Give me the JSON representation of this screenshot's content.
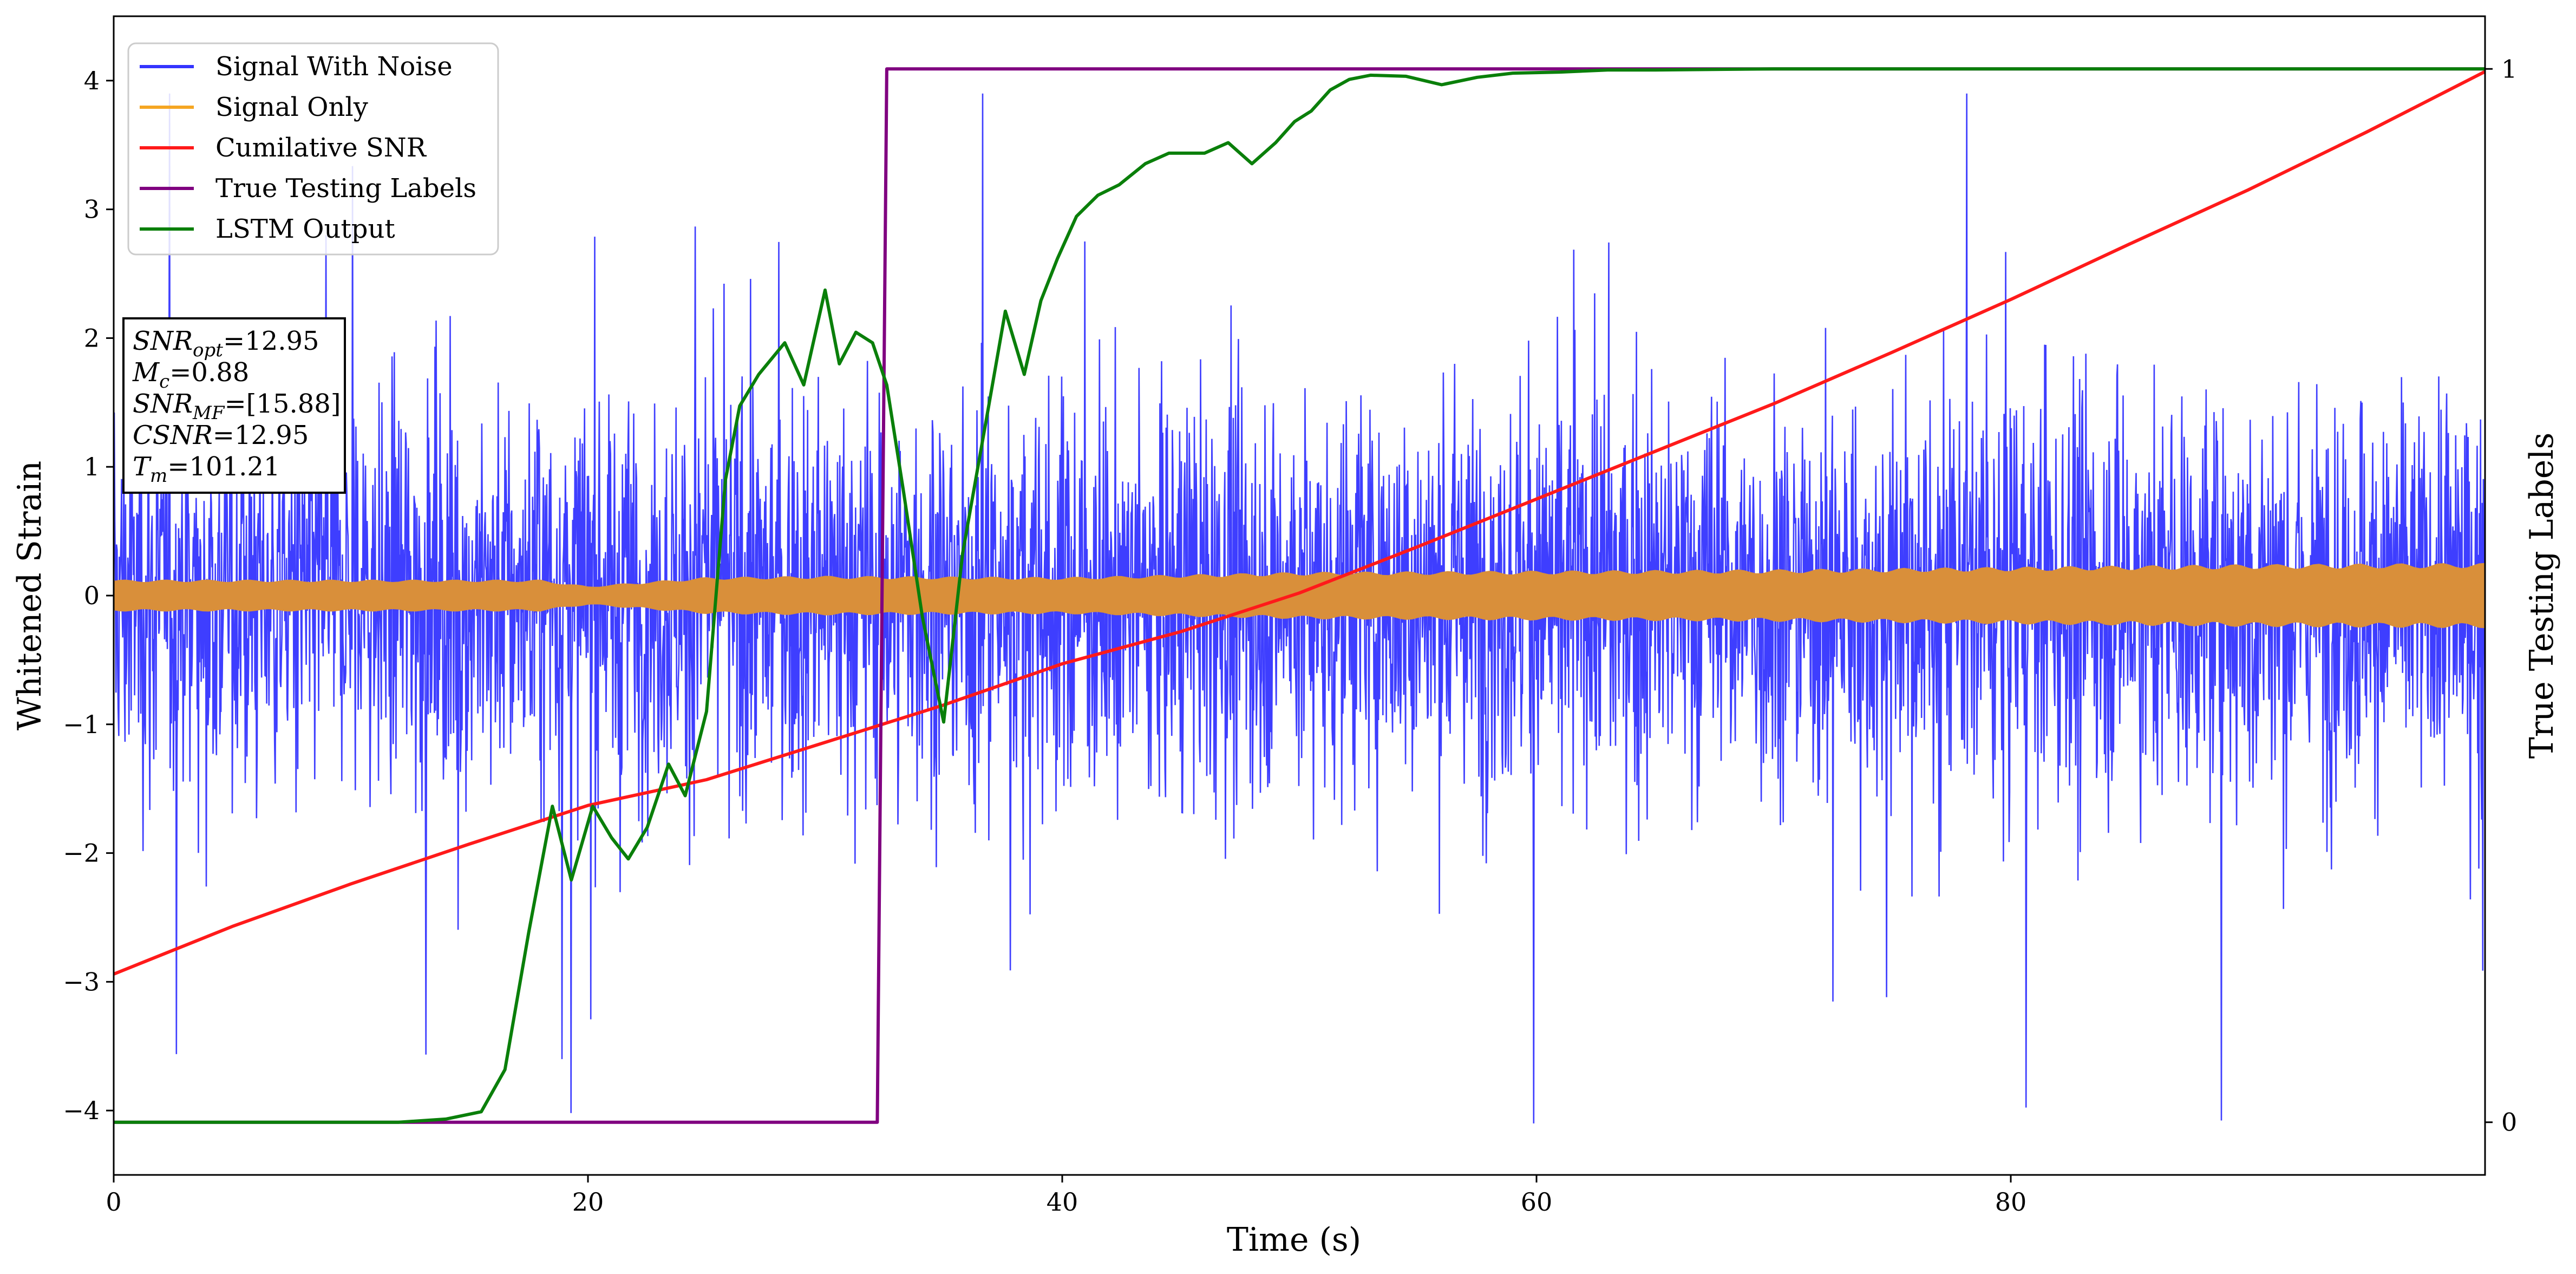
{
  "chart_data": {
    "type": "line",
    "xlabel": "Time (s)",
    "ylabel": "Whitened Strain",
    "y2label": "True Testing Labels",
    "xlim": [
      0,
      100
    ],
    "ylim": [
      -4.5,
      4.5
    ],
    "y2lim": [
      -0.05,
      1.05
    ],
    "xticks": [
      "0",
      "20",
      "40",
      "60",
      "80"
    ],
    "yticks": [
      "−4",
      "−3",
      "−2",
      "−1",
      "0",
      "1",
      "2",
      "3",
      "4"
    ],
    "y2ticks": [
      "0",
      "1"
    ],
    "grid": false,
    "legend_position": "upper-left",
    "legend": [
      {
        "label": "Signal With Noise",
        "color": "#3434ff"
      },
      {
        "label": "Signal Only",
        "color": "#f5a623"
      },
      {
        "label": "Cumilative SNR",
        "color": "#ff1a1a"
      },
      {
        "label": "True Testing Labels",
        "color": "#800080"
      },
      {
        "label": "LSTM Output",
        "color": "#0a7f0a"
      }
    ],
    "annotation": [
      {
        "base": "SNR",
        "sub": "opt",
        "value": "=12.95"
      },
      {
        "base": "M",
        "sub": "c",
        "value": "=0.88"
      },
      {
        "base": "SNR",
        "sub": "MF",
        "value": "=[15.88]"
      },
      {
        "base": "CSNR",
        "sub": "",
        "value": "=12.95"
      },
      {
        "base": "T",
        "sub": "m",
        "value": "=101.21"
      }
    ],
    "series": [
      {
        "name": "Signal With Noise",
        "axis": "left",
        "color": "#3434ff",
        "description_envelope": {
          "x_start": 0,
          "x_end": 100,
          "typical_amplitude": 2.3,
          "max": 3.9,
          "min": -4.1
        }
      },
      {
        "name": "Signal Only",
        "axis": "left",
        "color": "#d98f3a",
        "envelope": {
          "x": [
            0,
            10,
            18,
            20,
            25,
            30,
            40,
            50,
            60,
            70,
            80,
            90,
            100
          ],
          "amp": [
            0.12,
            0.12,
            0.12,
            0.07,
            0.14,
            0.15,
            0.14,
            0.18,
            0.19,
            0.2,
            0.22,
            0.24,
            0.25
          ]
        }
      },
      {
        "name": "Cumilative SNR",
        "axis": "left",
        "color": "#ff1a1a",
        "x": [
          0,
          5,
          10,
          15,
          20,
          25,
          30,
          35,
          40,
          45,
          50,
          55,
          60,
          65,
          70,
          75,
          80,
          85,
          90,
          95,
          100
        ],
        "y": [
          -2.94,
          -2.57,
          -2.24,
          -1.93,
          -1.63,
          -1.43,
          -1.14,
          -0.85,
          -0.53,
          -0.28,
          0.02,
          0.38,
          0.75,
          1.12,
          1.49,
          1.89,
          2.3,
          2.73,
          3.15,
          3.6,
          4.07
        ]
      },
      {
        "name": "True Testing Labels",
        "axis": "right",
        "color": "#800080",
        "x": [
          0,
          32.2,
          32.6,
          100
        ],
        "y": [
          0,
          0,
          1,
          1
        ]
      },
      {
        "name": "LSTM Output",
        "axis": "right",
        "color": "#0a7f0a",
        "x": [
          0,
          12,
          14,
          15.5,
          16.5,
          17.5,
          18.5,
          19.3,
          20.2,
          21,
          21.7,
          22.5,
          23.4,
          24.1,
          25,
          25.8,
          26.4,
          27.2,
          28.3,
          29.1,
          30,
          30.6,
          31.3,
          32,
          32.6,
          33.3,
          34.1,
          35,
          35.8,
          36.9,
          37.6,
          38.4,
          39.1,
          39.8,
          40.6,
          41.5,
          42.4,
          43.5,
          44.5,
          46,
          47,
          48,
          49,
          49.8,
          50.5,
          51.3,
          52.1,
          53,
          54.5,
          56,
          57.5,
          59,
          61,
          63,
          65,
          70,
          80,
          90,
          100
        ],
        "y": [
          0,
          0,
          0.003,
          0.01,
          0.05,
          0.18,
          0.3,
          0.23,
          0.3,
          0.27,
          0.25,
          0.28,
          0.34,
          0.31,
          0.39,
          0.61,
          0.68,
          0.71,
          0.74,
          0.7,
          0.79,
          0.72,
          0.75,
          0.74,
          0.7,
          0.6,
          0.48,
          0.38,
          0.54,
          0.68,
          0.77,
          0.71,
          0.78,
          0.82,
          0.86,
          0.88,
          0.89,
          0.91,
          0.92,
          0.92,
          0.93,
          0.91,
          0.93,
          0.95,
          0.96,
          0.98,
          0.99,
          0.994,
          0.993,
          0.985,
          0.992,
          0.996,
          0.997,
          0.999,
          0.999,
          1.0,
          1.0,
          1.0,
          1.0
        ]
      }
    ]
  }
}
